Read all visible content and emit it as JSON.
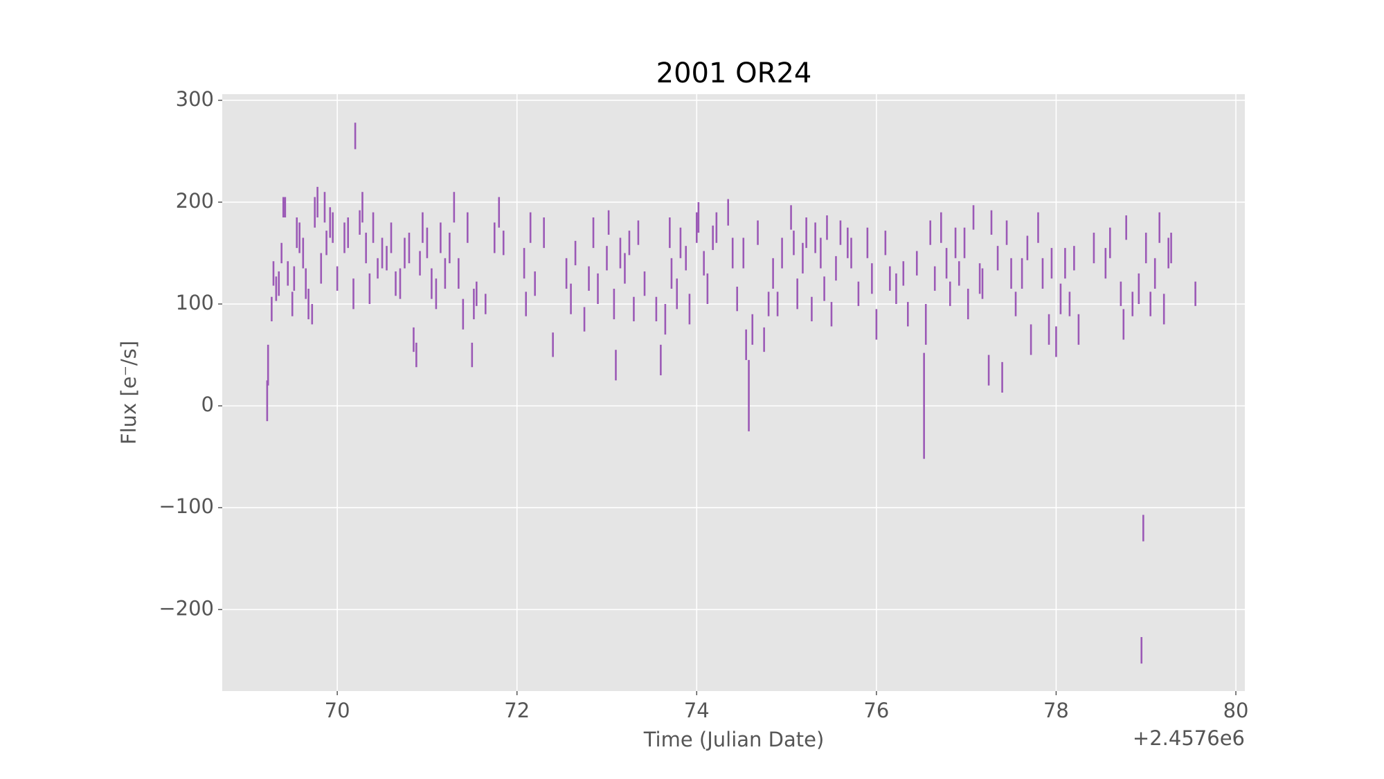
{
  "chart_data": {
    "type": "errorbar",
    "title": "2001 OR24",
    "x_label": "Time (Julian Date)",
    "y_label": "Flux [e⁻/s]",
    "x_offset_label": "+2.4576e6",
    "color": "#9b59b6",
    "grid": true,
    "xlim": [
      68.72,
      80.1
    ],
    "ylim": [
      -280,
      306
    ],
    "xticks": [
      70,
      72,
      74,
      76,
      78,
      80
    ],
    "yticks": [
      {
        "value": -200,
        "label": "−200"
      },
      {
        "value": -100,
        "label": "−100"
      },
      0,
      100,
      200,
      300
    ],
    "x": [
      69.22,
      69.23,
      69.27,
      69.29,
      69.32,
      69.35,
      69.38,
      69.4,
      69.42,
      69.45,
      69.5,
      69.52,
      69.55,
      69.58,
      69.62,
      69.65,
      69.68,
      69.72,
      69.75,
      69.78,
      69.82,
      69.86,
      69.88,
      69.92,
      69.95,
      70.0,
      70.08,
      70.12,
      70.18,
      70.2,
      70.25,
      70.28,
      70.32,
      70.36,
      70.4,
      70.45,
      70.5,
      70.55,
      70.6,
      70.65,
      70.7,
      70.75,
      70.8,
      70.85,
      70.88,
      70.92,
      70.95,
      71.0,
      71.05,
      71.1,
      71.15,
      71.2,
      71.25,
      71.3,
      71.35,
      71.4,
      71.45,
      71.5,
      71.52,
      71.55,
      71.65,
      71.75,
      71.8,
      71.85,
      72.08,
      72.1,
      72.15,
      72.2,
      72.3,
      72.4,
      72.55,
      72.6,
      72.65,
      72.75,
      72.8,
      72.85,
      72.9,
      73.0,
      73.02,
      73.08,
      73.1,
      73.15,
      73.2,
      73.25,
      73.3,
      73.35,
      73.42,
      73.55,
      73.6,
      73.65,
      73.7,
      73.72,
      73.78,
      73.82,
      73.88,
      73.92,
      74.0,
      74.02,
      74.08,
      74.12,
      74.18,
      74.22,
      74.35,
      74.4,
      74.45,
      74.52,
      74.55,
      74.58,
      74.62,
      74.68,
      74.75,
      74.8,
      74.85,
      74.9,
      74.95,
      75.05,
      75.08,
      75.12,
      75.18,
      75.22,
      75.28,
      75.32,
      75.38,
      75.42,
      75.45,
      75.5,
      75.55,
      75.6,
      75.68,
      75.72,
      75.8,
      75.9,
      75.95,
      76.0,
      76.1,
      76.15,
      76.22,
      76.3,
      76.35,
      76.45,
      76.53,
      76.55,
      76.6,
      76.65,
      76.72,
      76.78,
      76.82,
      76.88,
      76.92,
      76.98,
      77.02,
      77.08,
      77.15,
      77.18,
      77.25,
      77.28,
      77.35,
      77.4,
      77.45,
      77.5,
      77.55,
      77.62,
      77.68,
      77.72,
      77.8,
      77.85,
      77.92,
      77.95,
      78.0,
      78.05,
      78.1,
      78.15,
      78.2,
      78.25,
      78.42,
      78.55,
      78.6,
      78.72,
      78.75,
      78.78,
      78.85,
      78.92,
      78.95,
      78.97,
      79.0,
      79.05,
      79.1,
      79.15,
      79.2,
      79.25,
      79.28,
      79.55
    ],
    "values": [
      5,
      40,
      95,
      130,
      115,
      120,
      150,
      195,
      195,
      130,
      100,
      125,
      170,
      165,
      150,
      120,
      100,
      90,
      190,
      200,
      135,
      195,
      160,
      180,
      175,
      125,
      165,
      170,
      110,
      265,
      180,
      195,
      155,
      115,
      175,
      135,
      150,
      145,
      165,
      120,
      120,
      150,
      155,
      65,
      50,
      140,
      175,
      160,
      120,
      110,
      165,
      130,
      155,
      195,
      130,
      90,
      175,
      50,
      100,
      110,
      100,
      165,
      190,
      160,
      140,
      100,
      175,
      120,
      170,
      60,
      130,
      105,
      150,
      85,
      125,
      170,
      115,
      145,
      180,
      100,
      40,
      150,
      135,
      160,
      95,
      170,
      120,
      95,
      45,
      85,
      170,
      130,
      110,
      160,
      145,
      95,
      175,
      185,
      140,
      115,
      165,
      175,
      190,
      150,
      105,
      150,
      60,
      10,
      75,
      170,
      65,
      100,
      130,
      100,
      150,
      185,
      160,
      110,
      145,
      170,
      95,
      165,
      150,
      115,
      175,
      90,
      135,
      170,
      160,
      150,
      110,
      160,
      125,
      80,
      160,
      125,
      115,
      130,
      90,
      140,
      0,
      80,
      170,
      125,
      175,
      140,
      110,
      160,
      130,
      160,
      100,
      185,
      125,
      120,
      35,
      180,
      145,
      28,
      170,
      130,
      100,
      130,
      155,
      65,
      175,
      130,
      75,
      140,
      63,
      105,
      140,
      100,
      145,
      75,
      155,
      140,
      160,
      110,
      80,
      175,
      100,
      115,
      -240,
      -120,
      155,
      100,
      130,
      175,
      95,
      150,
      155,
      110
    ],
    "errors": [
      20,
      20,
      12,
      12,
      12,
      12,
      10,
      10,
      10,
      12,
      12,
      12,
      15,
      15,
      15,
      15,
      15,
      10,
      15,
      15,
      15,
      15,
      12,
      15,
      15,
      12,
      15,
      15,
      15,
      13,
      12,
      15,
      15,
      15,
      15,
      10,
      15,
      12,
      15,
      12,
      15,
      15,
      15,
      12,
      12,
      12,
      15,
      15,
      15,
      15,
      15,
      15,
      15,
      15,
      15,
      15,
      15,
      12,
      15,
      12,
      10,
      15,
      15,
      12,
      15,
      12,
      15,
      12,
      15,
      12,
      15,
      15,
      12,
      12,
      12,
      15,
      15,
      12,
      12,
      15,
      15,
      15,
      15,
      12,
      12,
      12,
      12,
      12,
      15,
      15,
      15,
      15,
      15,
      15,
      12,
      15,
      15,
      15,
      12,
      15,
      12,
      15,
      13,
      15,
      12,
      15,
      15,
      35,
      15,
      12,
      12,
      12,
      15,
      12,
      15,
      12,
      12,
      15,
      15,
      15,
      12,
      15,
      15,
      12,
      12,
      12,
      12,
      12,
      15,
      15,
      12,
      15,
      15,
      15,
      12,
      12,
      15,
      12,
      12,
      12,
      52,
      20,
      12,
      12,
      15,
      15,
      12,
      15,
      12,
      15,
      15,
      12,
      15,
      15,
      15,
      12,
      12,
      15,
      12,
      15,
      12,
      15,
      12,
      15,
      15,
      15,
      15,
      15,
      15,
      15,
      15,
      12,
      12,
      15,
      15,
      15,
      15,
      12,
      15,
      12,
      12,
      15,
      13,
      13,
      15,
      12,
      15,
      15,
      15,
      15,
      15,
      12
    ]
  }
}
